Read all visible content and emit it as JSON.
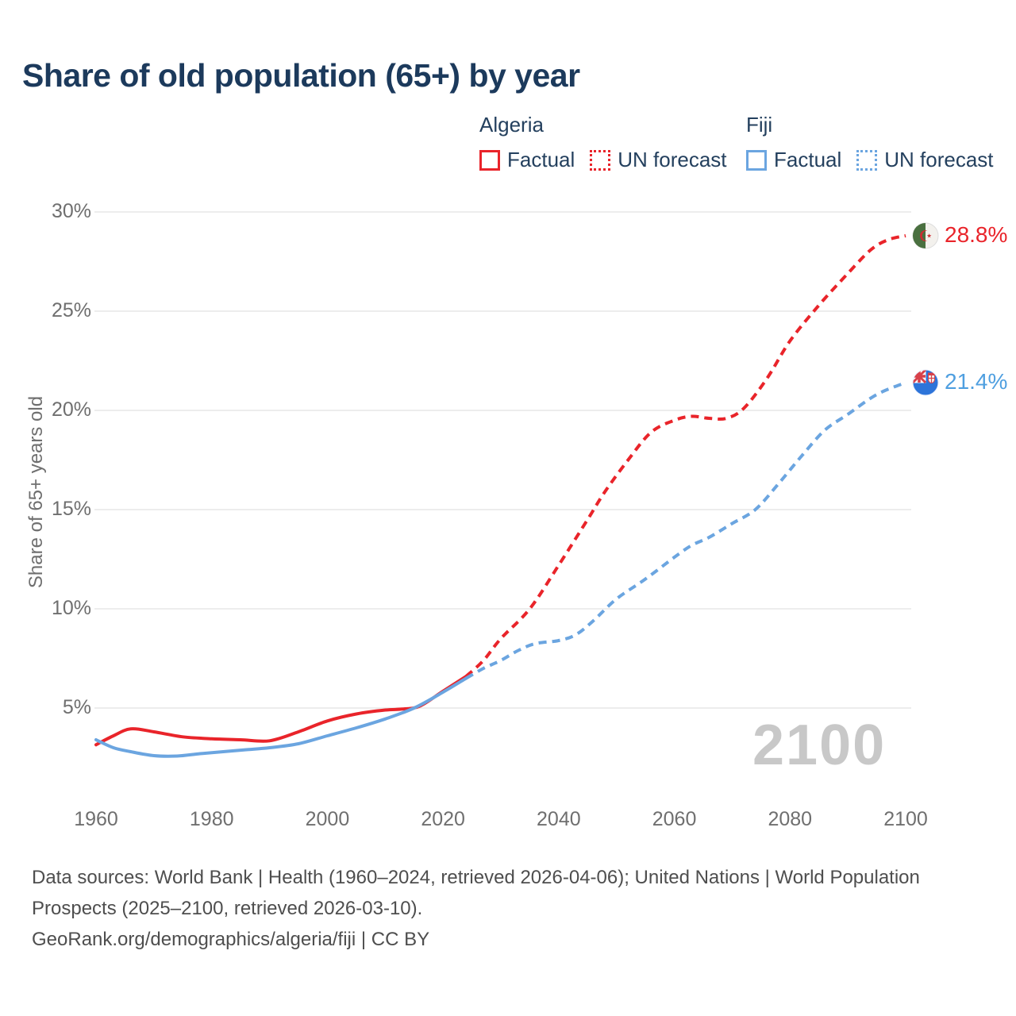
{
  "header": {
    "title": "Share of old population (65+) by year"
  },
  "legend": {
    "algeria": {
      "title": "Algeria",
      "factual_label": "Factual",
      "forecast_label": "UN forecast"
    },
    "fiji": {
      "title": "Fiji",
      "factual_label": "Factual",
      "forecast_label": "UN forecast"
    }
  },
  "colors": {
    "algeria_line": "#e9242a",
    "fiji_line": "#6ba5e0",
    "fiji_label": "#4f9fe0",
    "legend_text": "#24405e",
    "grid": "#e7e7e7",
    "tick_text": "#6f6f6f",
    "watermark": "#c8c8c8",
    "footer_text": "#4e4e4e"
  },
  "chart_data": {
    "type": "line",
    "title": "Share of old population (65+) by year",
    "xlabel": "",
    "ylabel": "Share of 65+ years old",
    "xlim": [
      1955,
      2115
    ],
    "ylim": [
      2,
      31
    ],
    "grid": "horizontal",
    "legend_position": "top-right",
    "watermark": "2100",
    "x_ticks": [
      {
        "value": 1960,
        "label": "1960"
      },
      {
        "value": 1980,
        "label": "1980"
      },
      {
        "value": 2000,
        "label": "2000"
      },
      {
        "value": 2020,
        "label": "2020"
      },
      {
        "value": 2040,
        "label": "2040"
      },
      {
        "value": 2060,
        "label": "2060"
      },
      {
        "value": 2080,
        "label": "2080"
      },
      {
        "value": 2100,
        "label": "2100"
      }
    ],
    "y_ticks": [
      {
        "value": 30,
        "label": "30%"
      },
      {
        "value": 25,
        "label": "25%"
      },
      {
        "value": 20,
        "label": "20%"
      },
      {
        "value": 15,
        "label": "15%"
      },
      {
        "value": 10,
        "label": "10%"
      },
      {
        "value": 5,
        "label": "5%"
      }
    ],
    "series": [
      {
        "id": "algeria-factual",
        "country": "Algeria",
        "kind": "Factual",
        "color": "#e9242a",
        "dashed": false,
        "points": [
          [
            1960,
            3.15
          ],
          [
            1963,
            3.6
          ],
          [
            1966,
            3.95
          ],
          [
            1970,
            3.8
          ],
          [
            1975,
            3.55
          ],
          [
            1980,
            3.45
          ],
          [
            1985,
            3.4
          ],
          [
            1990,
            3.35
          ],
          [
            1995,
            3.8
          ],
          [
            2000,
            4.35
          ],
          [
            2005,
            4.7
          ],
          [
            2010,
            4.9
          ],
          [
            2013,
            4.95
          ],
          [
            2016,
            5.1
          ],
          [
            2020,
            5.85
          ],
          [
            2024,
            6.6
          ]
        ]
      },
      {
        "id": "algeria-forecast",
        "country": "Algeria",
        "kind": "UN forecast",
        "color": "#e9242a",
        "dashed": true,
        "points": [
          [
            2024,
            6.6
          ],
          [
            2027,
            7.4
          ],
          [
            2030,
            8.5
          ],
          [
            2035,
            10.0
          ],
          [
            2040,
            12.2
          ],
          [
            2045,
            14.5
          ],
          [
            2048,
            15.9
          ],
          [
            2052,
            17.5
          ],
          [
            2056,
            18.9
          ],
          [
            2060,
            19.5
          ],
          [
            2063,
            19.7
          ],
          [
            2066,
            19.6
          ],
          [
            2069,
            19.6
          ],
          [
            2072,
            20.1
          ],
          [
            2076,
            21.6
          ],
          [
            2080,
            23.5
          ],
          [
            2085,
            25.3
          ],
          [
            2090,
            26.9
          ],
          [
            2094,
            28.1
          ],
          [
            2097,
            28.6
          ],
          [
            2100,
            28.8
          ]
        ]
      },
      {
        "id": "fiji-factual",
        "country": "Fiji",
        "kind": "Factual",
        "color": "#6ba5e0",
        "dashed": false,
        "points": [
          [
            1960,
            3.4
          ],
          [
            1963,
            3.0
          ],
          [
            1966,
            2.8
          ],
          [
            1970,
            2.6
          ],
          [
            1974,
            2.58
          ],
          [
            1978,
            2.7
          ],
          [
            1982,
            2.8
          ],
          [
            1986,
            2.9
          ],
          [
            1990,
            3.0
          ],
          [
            1995,
            3.2
          ],
          [
            2000,
            3.6
          ],
          [
            2005,
            4.0
          ],
          [
            2010,
            4.45
          ],
          [
            2015,
            5.0
          ],
          [
            2020,
            5.8
          ],
          [
            2024,
            6.5
          ]
        ]
      },
      {
        "id": "fiji-forecast",
        "country": "Fiji",
        "kind": "UN forecast",
        "color": "#6ba5e0",
        "dashed": true,
        "points": [
          [
            2024,
            6.5
          ],
          [
            2027,
            7.0
          ],
          [
            2030,
            7.4
          ],
          [
            2033,
            7.9
          ],
          [
            2036,
            8.25
          ],
          [
            2040,
            8.4
          ],
          [
            2043,
            8.7
          ],
          [
            2046,
            9.4
          ],
          [
            2050,
            10.5
          ],
          [
            2055,
            11.5
          ],
          [
            2060,
            12.6
          ],
          [
            2063,
            13.2
          ],
          [
            2066,
            13.6
          ],
          [
            2070,
            14.3
          ],
          [
            2074,
            15.0
          ],
          [
            2078,
            16.3
          ],
          [
            2082,
            17.7
          ],
          [
            2086,
            19.0
          ],
          [
            2090,
            19.8
          ],
          [
            2095,
            20.8
          ],
          [
            2100,
            21.4
          ]
        ]
      }
    ],
    "end_labels": [
      {
        "country": "Algeria",
        "label": "28.8%",
        "value": 28.8
      },
      {
        "country": "Fiji",
        "label": "21.4%",
        "value": 21.4
      }
    ]
  },
  "footer": {
    "sources": "Data sources: World Bank | Health (1960–2024, retrieved 2026-04-06); United Nations | World Population Prospects (2025–2100, retrieved 2026-03-10).",
    "attribution": "GeoRank.org/demographics/algeria/fiji | CC BY"
  }
}
